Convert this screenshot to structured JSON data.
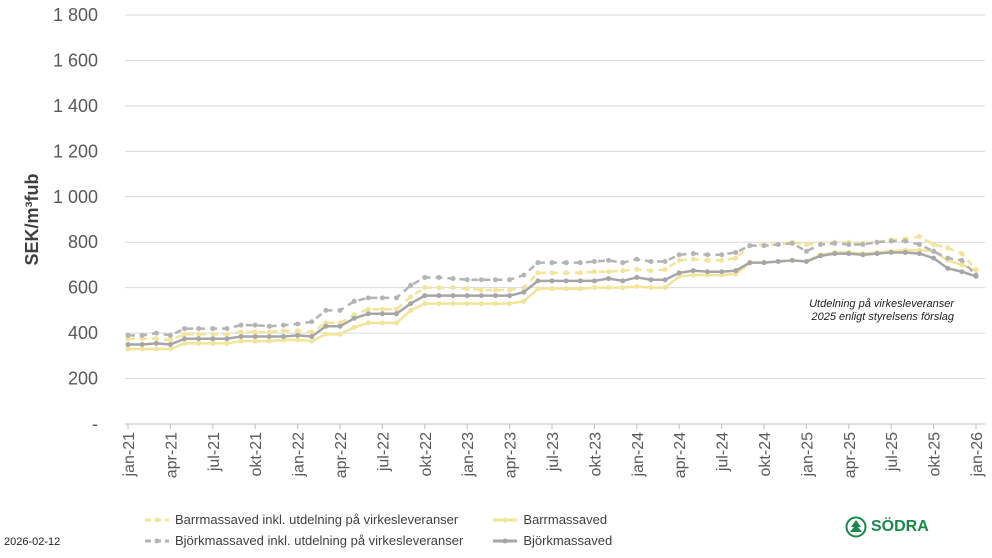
{
  "chart_data": {
    "type": "line",
    "ylabel": "SEK/m³fub",
    "ylim": [
      0,
      1800
    ],
    "yticks": [
      "-",
      "200",
      "400",
      "600",
      "800",
      "1 000",
      "1 200",
      "1 400",
      "1 600",
      "1 800"
    ],
    "grid": true,
    "legend_position": "bottom",
    "xticks": [
      "jan-21",
      "apr-21",
      "jul-21",
      "okt-21",
      "jan-22",
      "apr-22",
      "jul-22",
      "okt-22",
      "jan-23",
      "apr-23",
      "jul-23",
      "okt-23",
      "jan-24",
      "apr-24",
      "jul-24",
      "okt-24",
      "jan-25",
      "apr-25",
      "jul-25",
      "okt-25",
      "jan-26"
    ],
    "x_start": "jan-21",
    "x_end": "jan-26",
    "annotation": [
      "Utdelning på virkesleveranser",
      "2025 enligt styrelsens förslag"
    ],
    "series": [
      {
        "name": "Barrmassaved inkl. utdelning på virkesleveranser",
        "color": "#f2e59a",
        "dash": true,
        "values": [
          375,
          375,
          375,
          370,
          395,
          395,
          395,
          395,
          405,
          405,
          405,
          410,
          410,
          405,
          445,
          445,
          480,
          505,
          505,
          505,
          560,
          600,
          600,
          600,
          595,
          590,
          590,
          590,
          600,
          665,
          665,
          665,
          665,
          670,
          670,
          675,
          680,
          675,
          680,
          720,
          725,
          720,
          720,
          730,
          785,
          790,
          790,
          800,
          790,
          795,
          800,
          800,
          795,
          800,
          810,
          815,
          825,
          790,
          775,
          750,
          680
        ]
      },
      {
        "name": "Barrmassaved",
        "color": "#f2e59a",
        "dash": false,
        "values": [
          330,
          330,
          330,
          330,
          355,
          355,
          355,
          355,
          365,
          365,
          365,
          370,
          370,
          365,
          395,
          395,
          425,
          445,
          445,
          445,
          500,
          530,
          530,
          530,
          530,
          530,
          530,
          530,
          540,
          595,
          595,
          595,
          595,
          600,
          600,
          600,
          605,
          600,
          600,
          650,
          655,
          655,
          655,
          660,
          710,
          710,
          715,
          720,
          715,
          745,
          755,
          755,
          750,
          755,
          760,
          765,
          765,
          760,
          720,
          700,
          675
        ]
      },
      {
        "name": "Björkmassaved inkl. utdelning på virkesleveranser",
        "color": "#b4b4b4",
        "dash": true,
        "values": [
          390,
          390,
          400,
          390,
          420,
          420,
          420,
          420,
          435,
          435,
          430,
          435,
          440,
          450,
          500,
          500,
          540,
          555,
          555,
          555,
          610,
          645,
          645,
          640,
          635,
          635,
          635,
          635,
          655,
          710,
          710,
          710,
          710,
          715,
          720,
          710,
          725,
          715,
          715,
          745,
          750,
          745,
          745,
          755,
          785,
          785,
          790,
          795,
          760,
          790,
          795,
          790,
          790,
          800,
          805,
          805,
          790,
          760,
          730,
          720,
          655
        ]
      },
      {
        "name": "Björkmassaved",
        "color": "#a6a6a6",
        "dash": false,
        "values": [
          350,
          350,
          355,
          350,
          375,
          375,
          375,
          375,
          385,
          385,
          385,
          385,
          390,
          385,
          430,
          430,
          465,
          485,
          485,
          485,
          530,
          565,
          565,
          565,
          565,
          565,
          565,
          565,
          580,
          630,
          630,
          630,
          630,
          630,
          640,
          630,
          645,
          635,
          635,
          665,
          675,
          670,
          670,
          675,
          710,
          710,
          715,
          720,
          715,
          740,
          750,
          750,
          745,
          750,
          755,
          755,
          750,
          730,
          685,
          670,
          650
        ]
      }
    ]
  },
  "footer": {
    "date": "2026-02-12",
    "logo": "SÖDRA"
  }
}
